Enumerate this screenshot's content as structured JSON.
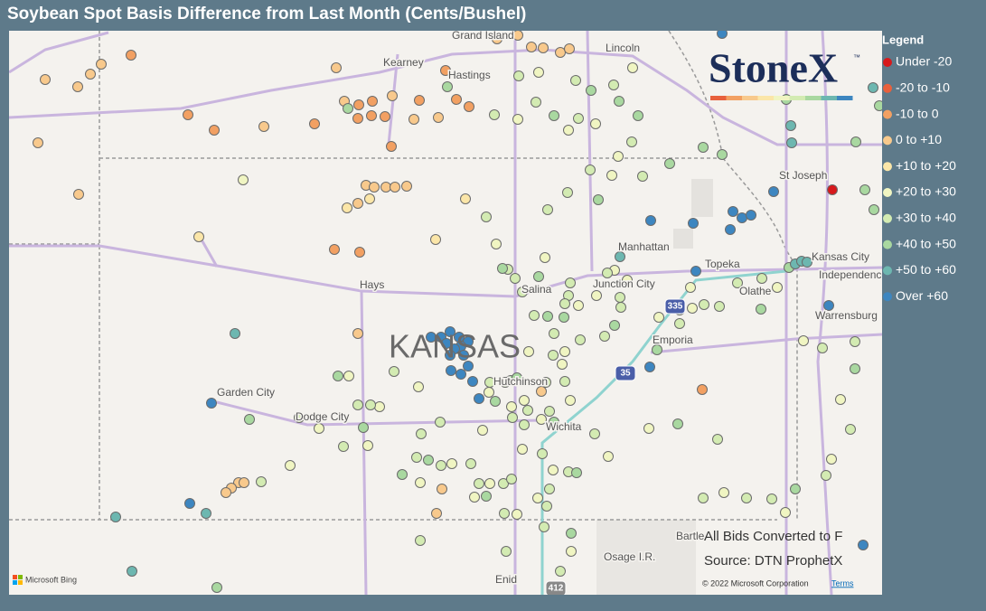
{
  "title": "Soybean Spot Basis Difference from Last Month (Cents/Bushel)",
  "legend": {
    "title": "Legend",
    "items": [
      {
        "label": "Under -20",
        "color": "#d7191c"
      },
      {
        "label": "-20 to -10",
        "color": "#e8603c"
      },
      {
        "label": "-10 to 0",
        "color": "#f2a062"
      },
      {
        "label": "0 to +10",
        "color": "#f8c98c"
      },
      {
        "label": "+10 to +20",
        "color": "#fbe6a8"
      },
      {
        "label": "+20 to +30",
        "color": "#f0f5c2"
      },
      {
        "label": "+30 to +40",
        "color": "#d3ebb2"
      },
      {
        "label": "+40 to +50",
        "color": "#a9d8a0"
      },
      {
        "label": "+50 to +60",
        "color": "#6db7b0"
      },
      {
        "label": "Over +60",
        "color": "#3d86c0"
      }
    ]
  },
  "map_labels": [
    "Grand Island",
    "Kearney",
    "Hastings",
    "Lincoln",
    "St Joseph",
    "Manhattan",
    "Topeka",
    "Kansas City",
    "Independence",
    "Olathe",
    "Warrensburg",
    "Hays",
    "Salina",
    "Junction City",
    "Emporia",
    "Hutchinson",
    "Garden City",
    "Dodge City",
    "Wichita",
    "Bartle",
    "Osage I.R.",
    "Enid"
  ],
  "state_label": "KANSAS",
  "highway_shields": [
    "335",
    "35",
    "412"
  ],
  "notes": [
    "All Bids Converted to F",
    "Source: DTN ProphetX"
  ],
  "attribution": {
    "bing": "Microsoft Bing",
    "copyright": "© 2022 Microsoft Corporation",
    "terms": "Terms"
  },
  "logo": {
    "text": "StoneX",
    "mark": "™"
  }
}
